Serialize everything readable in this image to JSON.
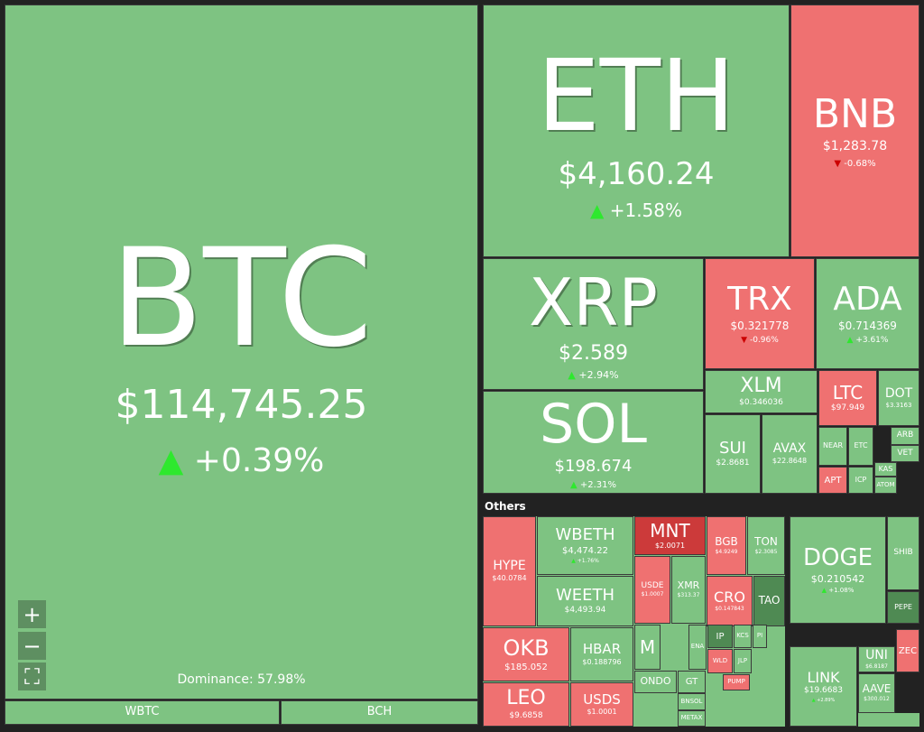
{
  "tiles": [
    {
      "symbol": "BTC",
      "price": "$114,745.25",
      "change": "+0.39%"
    },
    {
      "symbol": "WBTC"
    },
    {
      "symbol": "BCH"
    },
    {
      "symbol": "ETH",
      "price": "$4,160.24",
      "change": "+1.58%"
    },
    {
      "symbol": "BNB",
      "price": "$1,283.78",
      "change": "-0.68%"
    },
    {
      "symbol": "XRP",
      "price": "$2.589",
      "change": "+2.94%"
    },
    {
      "symbol": "SOL",
      "price": "$198.674",
      "change": "+2.31%"
    },
    {
      "symbol": "TRX",
      "price": "$0.321778",
      "change": "-0.96%"
    },
    {
      "symbol": "ADA",
      "price": "$0.714369",
      "change": "+3.61%"
    },
    {
      "symbol": "XLM",
      "price": "$0.346036"
    },
    {
      "symbol": "LTC",
      "price": "$97.949"
    },
    {
      "symbol": "DOT",
      "price": "$3.3163"
    },
    {
      "symbol": "SUI",
      "price": "$2.8681"
    },
    {
      "symbol": "AVAX",
      "price": "$22.8648"
    },
    {
      "symbol": "NEAR"
    },
    {
      "symbol": "ETC"
    },
    {
      "symbol": "ARB"
    },
    {
      "symbol": "VET"
    },
    {
      "symbol": "APT"
    },
    {
      "symbol": "ICP"
    },
    {
      "symbol": "KAS"
    },
    {
      "symbol": "ATOM"
    },
    {
      "symbol": "HYPE",
      "price": "$40.0784"
    },
    {
      "symbol": "WBETH",
      "price": "$4,474.22",
      "change": "+1.76%"
    },
    {
      "symbol": "WEETH",
      "price": "$4,493.94"
    },
    {
      "symbol": "MNT",
      "price": "$2.0071"
    },
    {
      "symbol": "USDE",
      "price": "$1.0007"
    },
    {
      "symbol": "XMR",
      "price": "$313.37"
    },
    {
      "symbol": "BGB",
      "price": "$4.9249"
    },
    {
      "symbol": "TON",
      "price": "$2.3085"
    },
    {
      "symbol": "CRO",
      "price": "$0.147843"
    },
    {
      "symbol": "TAO"
    },
    {
      "symbol": "OKB",
      "price": "$185.052"
    },
    {
      "symbol": "HBAR",
      "price": "$0.188796"
    },
    {
      "symbol": "LEO",
      "price": "$9.6858"
    },
    {
      "symbol": "USDS",
      "price": "$1.0001"
    },
    {
      "symbol": "M"
    },
    {
      "symbol": "ENA"
    },
    {
      "symbol": "IP"
    },
    {
      "symbol": "KCS"
    },
    {
      "symbol": "PI"
    },
    {
      "symbol": "WLD"
    },
    {
      "symbol": "JLP"
    },
    {
      "symbol": "PUMP"
    },
    {
      "symbol": "ONDO"
    },
    {
      "symbol": "GT"
    },
    {
      "symbol": "BNSOL"
    },
    {
      "symbol": "METAX"
    },
    {
      "symbol": "DOGE",
      "price": "$0.210542",
      "change": "+1.08%"
    },
    {
      "symbol": "SHIB"
    },
    {
      "symbol": "PEPE"
    },
    {
      "symbol": "LINK",
      "price": "$19.6683",
      "change": "+2.89%"
    },
    {
      "symbol": "UNI",
      "price": "$6.8187"
    },
    {
      "symbol": "AAVE",
      "price": "$300.012"
    },
    {
      "symbol": "ZEC"
    }
  ],
  "others_label": "Others",
  "dominance": "Dominance: 57.98%"
}
